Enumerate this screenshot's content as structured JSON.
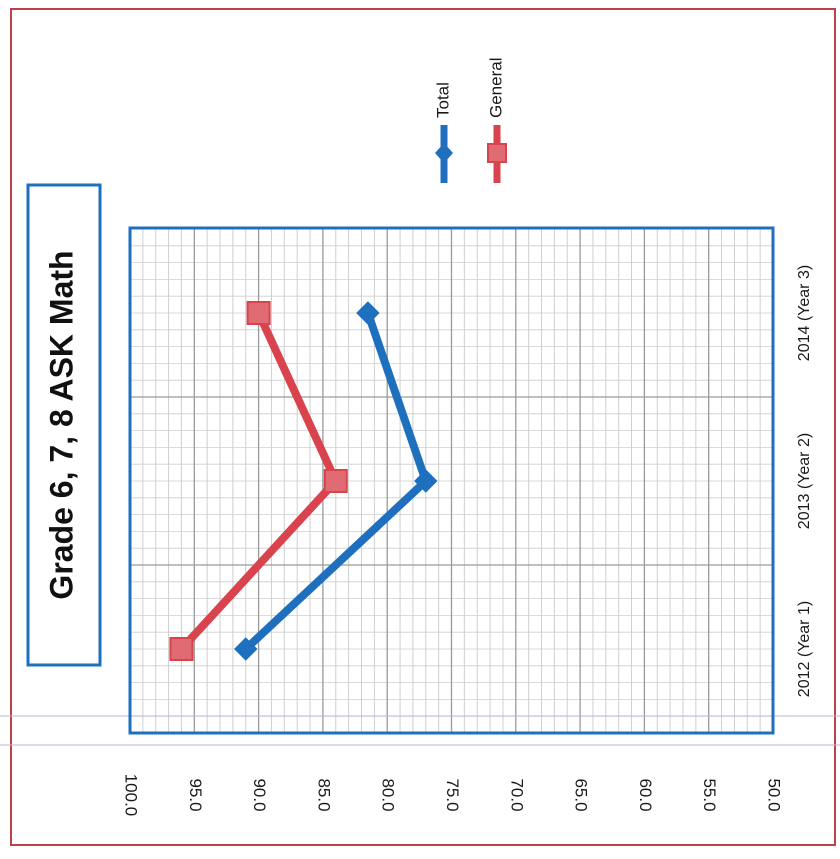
{
  "chart_data": {
    "type": "line",
    "title": "Grade 6, 7, 8 ASK Math",
    "categories": [
      "2012 (Year 1)",
      "2013 (Year 2)",
      "2014 (Year 3)"
    ],
    "series": [
      {
        "name": "Total",
        "values": [
          91.0,
          77.0,
          81.5
        ],
        "color": "#1f6fbf",
        "marker": "diamond"
      },
      {
        "name": "General",
        "values": [
          96.0,
          84.0,
          90.0
        ],
        "color": "#d9434d",
        "marker": "square"
      }
    ],
    "ylim": [
      50,
      100
    ],
    "y_ticks": [
      "100.0",
      "95.0",
      "90.0",
      "85.0",
      "80.0",
      "75.0",
      "70.0",
      "65.0",
      "60.0",
      "55.0",
      "50.0"
    ],
    "grid": true,
    "legend_position": "top",
    "orientation": "rotated 90° clockwise"
  },
  "colors": {
    "frame": "#c0404a",
    "plot_border": "#1f6fbf",
    "grid_major": "#9a9a9a",
    "grid_minor": "#cfcfcf"
  }
}
